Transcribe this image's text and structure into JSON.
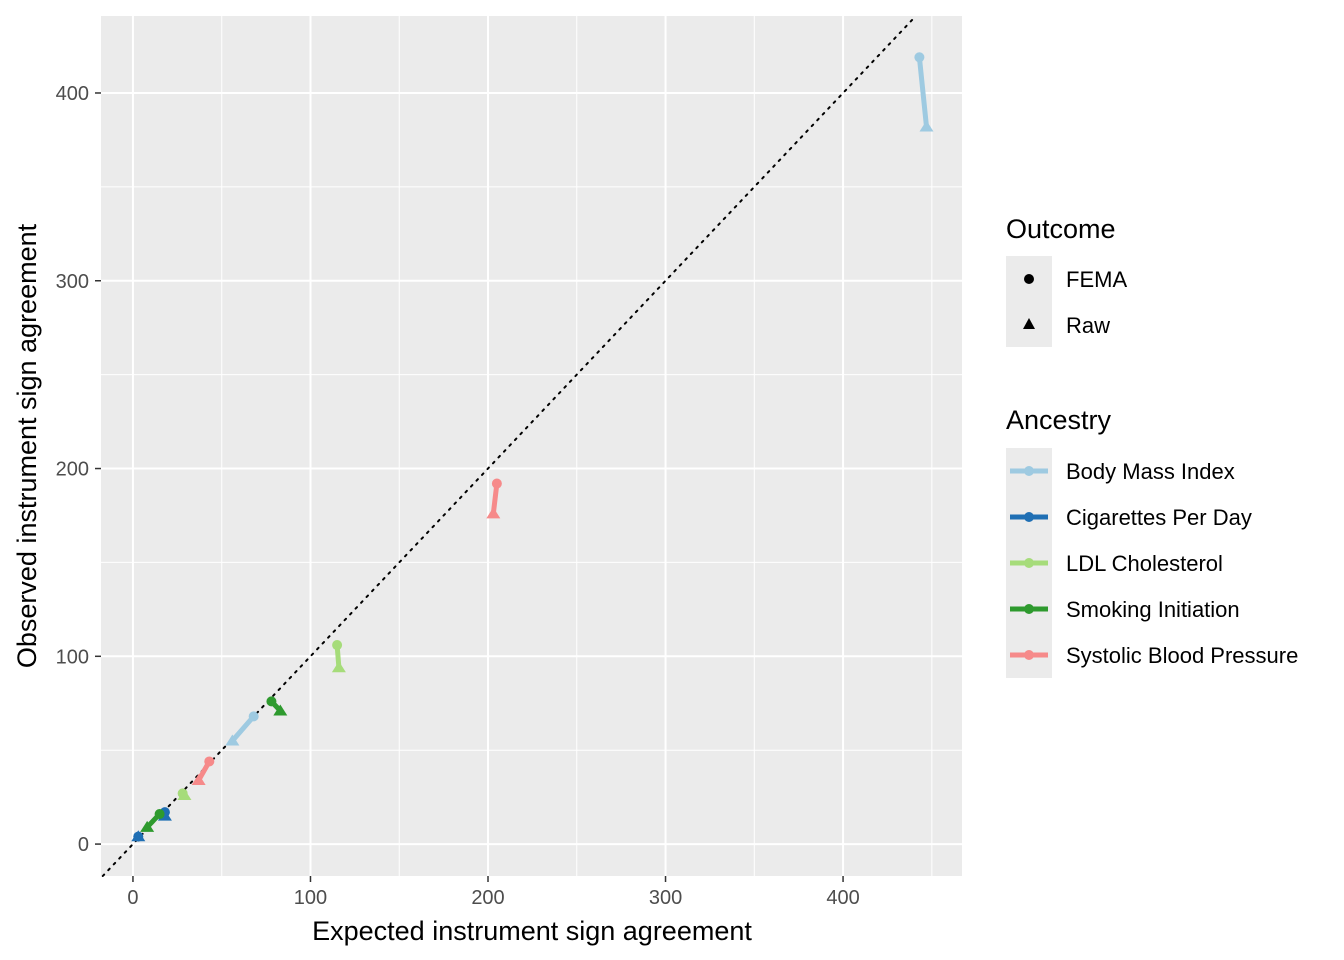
{
  "chart_data": {
    "type": "scatter",
    "xlabel": "Expected instrument sign agreement",
    "ylabel": "Observed instrument sign agreement",
    "xlim": [
      -18,
      467
    ],
    "ylim": [
      -17,
      441
    ],
    "x_ticks": [
      0,
      100,
      200,
      300,
      400
    ],
    "y_ticks": [
      0,
      100,
      200,
      300,
      400
    ],
    "grid": true,
    "reference_line": {
      "type": "identity",
      "style": "dotted"
    },
    "legend_position": "right",
    "legends": {
      "outcome": {
        "title": "Outcome",
        "items": [
          {
            "label": "FEMA",
            "shape": "circle"
          },
          {
            "label": "Raw",
            "shape": "triangle"
          }
        ]
      },
      "ancestry": {
        "title": "Ancestry",
        "items": [
          {
            "label": "Body Mass Index",
            "color": "#9ecae1"
          },
          {
            "label": "Cigarettes Per Day",
            "color": "#1f6fb4"
          },
          {
            "label": "LDL Cholesterol",
            "color": "#a6dc7a"
          },
          {
            "label": "Smoking Initiation",
            "color": "#2e9a2e"
          },
          {
            "label": "Systolic Blood Pressure",
            "color": "#f68a8a"
          }
        ]
      }
    },
    "series": [
      {
        "name": "Body Mass Index",
        "color": "#9ecae1",
        "pairs": [
          {
            "fema": [
              443,
              419
            ],
            "raw": [
              447,
              382
            ]
          },
          {
            "fema": [
              68,
              68
            ],
            "raw": [
              56,
              55
            ]
          }
        ]
      },
      {
        "name": "Cigarettes Per Day",
        "color": "#1f6fb4",
        "pairs": [
          {
            "fema": [
              18,
              17
            ],
            "raw": [
              18,
              15
            ]
          },
          {
            "fema": [
              3,
              4
            ],
            "raw": [
              3,
              4
            ]
          }
        ]
      },
      {
        "name": "LDL Cholesterol",
        "color": "#a6dc7a",
        "pairs": [
          {
            "fema": [
              115,
              106
            ],
            "raw": [
              116,
              94
            ]
          },
          {
            "fema": [
              28,
              27
            ],
            "raw": [
              29,
              26
            ]
          }
        ]
      },
      {
        "name": "Smoking Initiation",
        "color": "#2e9a2e",
        "pairs": [
          {
            "fema": [
              78,
              76
            ],
            "raw": [
              83,
              71
            ]
          },
          {
            "fema": [
              15,
              16
            ],
            "raw": [
              8,
              9
            ]
          }
        ]
      },
      {
        "name": "Systolic Blood Pressure",
        "color": "#f68a8a",
        "pairs": [
          {
            "fema": [
              205,
              192
            ],
            "raw": [
              203,
              176
            ]
          },
          {
            "fema": [
              43,
              44
            ],
            "raw": [
              37,
              34
            ]
          }
        ]
      }
    ]
  }
}
